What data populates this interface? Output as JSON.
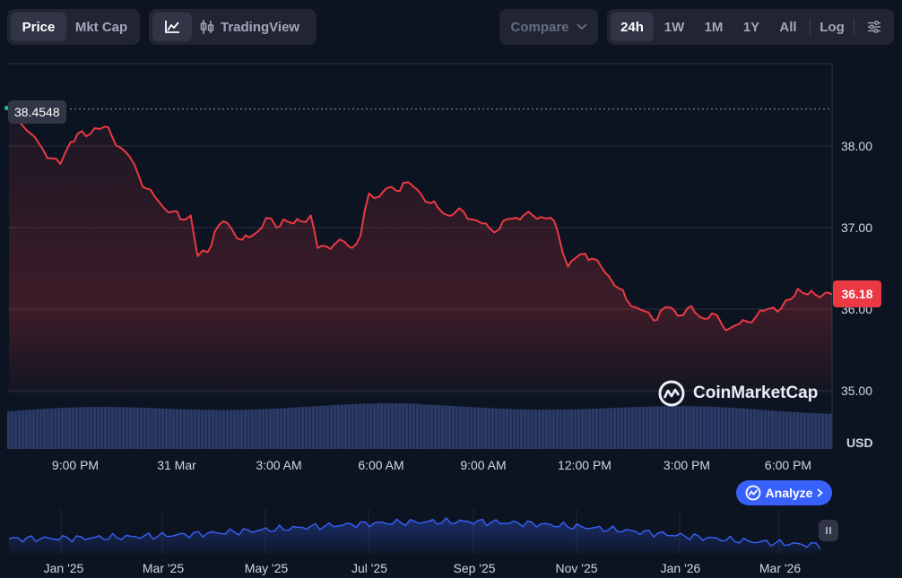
{
  "toolbar": {
    "metric_tabs": [
      {
        "label": "Price",
        "active": true
      },
      {
        "label": "Mkt Cap",
        "active": false
      }
    ],
    "tradingview_label": "TradingView",
    "compare_label": "Compare",
    "ranges": [
      {
        "label": "24h",
        "active": true
      },
      {
        "label": "1W",
        "active": false
      },
      {
        "label": "1M",
        "active": false
      },
      {
        "label": "1Y",
        "active": false
      },
      {
        "label": "All",
        "active": false
      }
    ],
    "log_label": "Log",
    "icons": [
      "line-chart-icon",
      "candlestick-icon",
      "chevron-down-icon",
      "settings-sliders-icon"
    ]
  },
  "colors": {
    "background": "#0d1421",
    "price_line": "#ea3943",
    "current_price_tag": "#ea3943",
    "volume": "#2b3a66",
    "mini_line": "#3861fb",
    "analyze_button": "#3861fb",
    "open_dot": "#16c784"
  },
  "chart": {
    "open_price": "38.4548",
    "current_price": "36.18",
    "currency": "USD",
    "watermark": "CoinMarketCap",
    "analyze_label": "Analyze"
  },
  "chart_data": {
    "type": "line",
    "ylim": [
      34.3,
      39.0
    ],
    "y_ticks": [
      "38.00",
      "37.00",
      "36.00",
      "35.00"
    ],
    "x_ticks": [
      "9:00 PM",
      "31 Mar",
      "3:00 AM",
      "6:00 AM",
      "9:00 AM",
      "12:00 PM",
      "3:00 PM",
      "6:00 PM"
    ],
    "x": [
      0,
      0.5,
      1,
      1.25,
      1.5,
      1.8,
      2,
      2.25,
      2.5,
      2.8,
      3,
      3.25,
      3.5,
      3.8,
      4,
      4.25,
      4.5,
      4.8,
      5,
      5.3,
      5.5,
      5.8,
      6,
      6.25,
      6.5,
      6.8,
      7,
      7.25,
      7.5,
      7.8,
      8,
      8.3,
      8.5,
      8.8,
      9,
      9.25,
      9.5,
      9.8,
      10,
      10.25,
      10.5,
      10.8,
      11,
      11.3,
      11.5,
      11.8,
      12,
      12.3,
      12.5,
      12.8,
      13,
      13.25,
      13.5,
      13.8,
      14,
      14.3,
      14.5,
      14.8,
      15,
      15.3,
      15.5,
      15.8,
      16,
      16.3,
      16.5,
      16.8,
      17,
      17.3,
      17.5,
      17.8,
      18,
      18.3,
      18.5,
      18.8,
      19,
      19.3,
      19.5,
      19.8,
      20,
      20.3,
      20.5,
      20.8,
      21,
      21.3,
      21.5,
      21.8,
      22,
      22.3,
      22.5,
      22.8,
      23,
      23.3,
      23.5,
      23.8,
      24
    ],
    "y": [
      38.4548,
      38.2,
      37.95,
      37.85,
      37.78,
      38.05,
      38.15,
      38.12,
      38.22,
      38.24,
      38.12,
      37.98,
      37.88,
      37.62,
      37.48,
      37.38,
      37.25,
      37.2,
      37.1,
      37.15,
      36.65,
      36.7,
      36.95,
      37.08,
      36.98,
      36.85,
      36.88,
      36.95,
      37.12,
      37.0,
      37.1,
      37.05,
      37.08,
      37.15,
      36.75,
      36.77,
      36.8,
      36.82,
      36.75,
      36.9,
      37.42,
      37.38,
      37.48,
      37.45,
      37.55,
      37.5,
      37.42,
      37.3,
      37.25,
      37.15,
      37.18,
      37.2,
      37.1,
      37.05,
      37.0,
      36.98,
      37.1,
      37.12,
      37.15,
      37.14,
      37.13,
      37.12,
      36.95,
      36.52,
      36.62,
      36.68,
      36.62,
      36.5,
      36.4,
      36.25,
      36.12,
      36.02,
      35.98,
      35.86,
      35.98,
      36.02,
      35.92,
      36.02,
      35.96,
      35.88,
      35.95,
      35.8,
      35.76,
      35.82,
      35.85,
      35.92,
      35.98,
      36.02,
      36.0,
      36.12,
      36.25,
      36.18,
      36.18,
      36.2,
      36.18
    ],
    "volume_note": "volume bars along bottom",
    "mini_overview_ticks": [
      "Jan '25",
      "Mar '25",
      "May '25",
      "Jul '25",
      "Sep '25",
      "Nov '25",
      "Jan '26",
      "Mar '26"
    ]
  }
}
